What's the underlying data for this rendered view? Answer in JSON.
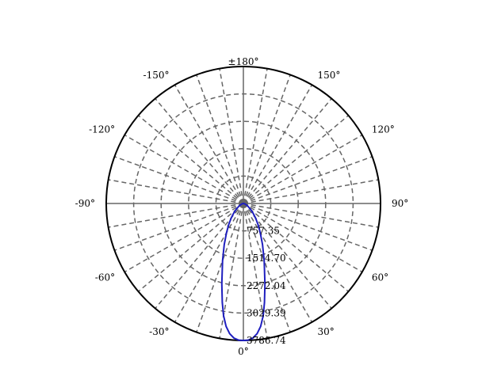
{
  "chart_data": {
    "type": "polar-line",
    "title": "",
    "angle_zero": "bottom",
    "angle_direction": "counterclockwise-to-negative-left",
    "angular_tick_labels": [
      {
        "angle": 180,
        "label": "±180°"
      },
      {
        "angle": 150,
        "label": "150°"
      },
      {
        "angle": 120,
        "label": "120°"
      },
      {
        "angle": 90,
        "label": "90°"
      },
      {
        "angle": 60,
        "label": "60°"
      },
      {
        "angle": 30,
        "label": "30°"
      },
      {
        "angle": 0,
        "label": "0°"
      },
      {
        "angle": -30,
        "label": "-30°"
      },
      {
        "angle": -60,
        "label": "-60°"
      },
      {
        "angle": -90,
        "label": "-90°"
      },
      {
        "angle": -120,
        "label": "-120°"
      },
      {
        "angle": -150,
        "label": "-150°"
      }
    ],
    "radial_ticks": [
      757.35,
      1514.7,
      2272.04,
      3029.39,
      3786.74
    ],
    "radial_tick_labels": [
      "757.35",
      "1514.70",
      "2272.04",
      "3029.39",
      "3786.74"
    ],
    "rmax": 3786.74,
    "grid": true,
    "grid_style": "dashed",
    "grid_color": "#666666",
    "series_color": "#1f1fbf",
    "series": [
      {
        "name": "",
        "points": [
          {
            "angle": -180,
            "r": 0
          },
          {
            "angle": -90,
            "r": 0
          },
          {
            "angle": -80,
            "r": 20
          },
          {
            "angle": -70,
            "r": 60
          },
          {
            "angle": -60,
            "r": 140
          },
          {
            "angle": -50,
            "r": 270
          },
          {
            "angle": -45,
            "r": 380
          },
          {
            "angle": -40,
            "r": 520
          },
          {
            "angle": -35,
            "r": 700
          },
          {
            "angle": -30,
            "r": 930
          },
          {
            "angle": -25,
            "r": 1250
          },
          {
            "angle": -20,
            "r": 1680
          },
          {
            "angle": -15,
            "r": 2300
          },
          {
            "angle": -12,
            "r": 2800
          },
          {
            "angle": -10,
            "r": 3150
          },
          {
            "angle": -8,
            "r": 3430
          },
          {
            "angle": -6,
            "r": 3620
          },
          {
            "angle": -4,
            "r": 3730
          },
          {
            "angle": -2,
            "r": 3780
          },
          {
            "angle": 0,
            "r": 3786.74
          },
          {
            "angle": 2,
            "r": 3780
          },
          {
            "angle": 4,
            "r": 3730
          },
          {
            "angle": 6,
            "r": 3620
          },
          {
            "angle": 8,
            "r": 3430
          },
          {
            "angle": 10,
            "r": 3150
          },
          {
            "angle": 12,
            "r": 2800
          },
          {
            "angle": 15,
            "r": 2300
          },
          {
            "angle": 20,
            "r": 1680
          },
          {
            "angle": 25,
            "r": 1250
          },
          {
            "angle": 30,
            "r": 930
          },
          {
            "angle": 35,
            "r": 700
          },
          {
            "angle": 40,
            "r": 520
          },
          {
            "angle": 45,
            "r": 380
          },
          {
            "angle": 50,
            "r": 270
          },
          {
            "angle": 60,
            "r": 140
          },
          {
            "angle": 70,
            "r": 60
          },
          {
            "angle": 80,
            "r": 20
          },
          {
            "angle": 90,
            "r": 0
          },
          {
            "angle": 180,
            "r": 0
          }
        ]
      }
    ]
  }
}
